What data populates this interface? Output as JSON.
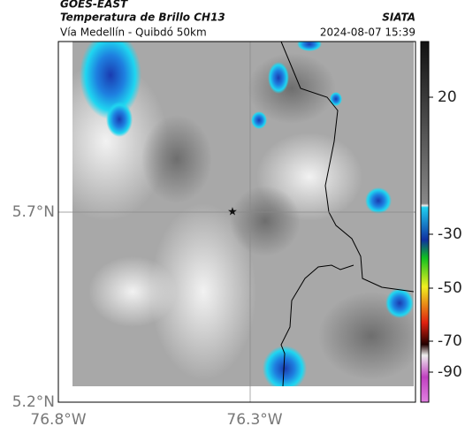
{
  "header": {
    "satellite": "GOES-EAST",
    "product": "Temperatura de Brillo CH13",
    "region": "Vía Medellín - Quibdó 50km",
    "source": "SIATA",
    "datetime": "2024-08-07 15:39"
  },
  "axes": {
    "lat_ticks": [
      "5.7°N",
      "5.2°N"
    ],
    "lon_ticks": [
      "76.8°W",
      "76.3°W"
    ]
  },
  "colorbar": {
    "ticks": [
      20,
      -30,
      -50,
      -70,
      -90
    ]
  }
}
